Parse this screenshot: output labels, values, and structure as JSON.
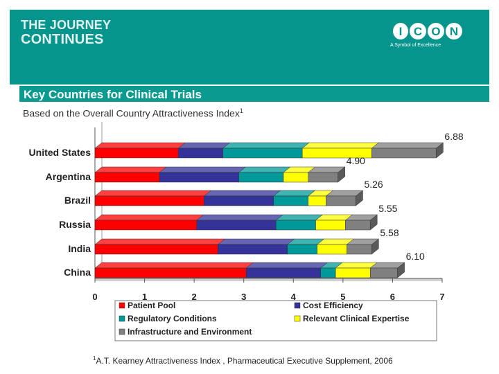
{
  "header": {
    "brand_line1": "THE JOURNEY",
    "brand_line2": "CONTINUES",
    "logo_letters": [
      "I",
      "C",
      "O",
      "N"
    ],
    "tagline": "A Symbol of Excellence"
  },
  "title": "Key Countries for Clinical Trials",
  "subtitle": "Based on the Overall Country Attractiveness Index",
  "subtitle_ref": "1",
  "footnote_ref": "1",
  "footnote": "A.T. Kearney Attractiveness Index , Pharmaceutical Executive Supplement, 2006",
  "colors": {
    "banner": "#05958c",
    "Patient Pool": "#ff0000",
    "Cost Efficiency": "#333399",
    "Regulatory Conditions": "#009999",
    "Relevant Clinical Expertise": "#ffff00",
    "Infrastructure and Environment": "#808080"
  },
  "chart_data": {
    "type": "bar",
    "orientation": "horizontal",
    "stacked": true,
    "style": "3d",
    "categories": [
      "United States",
      "Argentina",
      "Brazil",
      "Russia",
      "India",
      "China"
    ],
    "totals": [
      "6.88",
      "4.90",
      "5.26",
      "5.55",
      "5.58",
      "6.10"
    ],
    "series": [
      {
        "name": "Patient Pool",
        "values": [
          1.68,
          1.3,
          2.2,
          2.05,
          2.48,
          3.05
        ]
      },
      {
        "name": "Cost Efficiency",
        "values": [
          0.9,
          1.6,
          1.4,
          1.6,
          1.4,
          1.5
        ]
      },
      {
        "name": "Regulatory Conditions",
        "values": [
          1.6,
          0.9,
          0.7,
          0.8,
          0.6,
          0.3
        ]
      },
      {
        "name": "Relevant Clinical Expertise",
        "values": [
          1.4,
          0.5,
          0.36,
          0.6,
          0.6,
          0.7
        ]
      },
      {
        "name": "Infrastructure and Environment",
        "values": [
          1.3,
          0.6,
          0.6,
          0.5,
          0.5,
          0.55
        ]
      }
    ],
    "x_ticks": [
      "0",
      "1",
      "2",
      "3",
      "4",
      "5",
      "6",
      "7"
    ],
    "xlim": [
      0,
      7
    ],
    "legend_position": "bottom",
    "grid": false
  }
}
